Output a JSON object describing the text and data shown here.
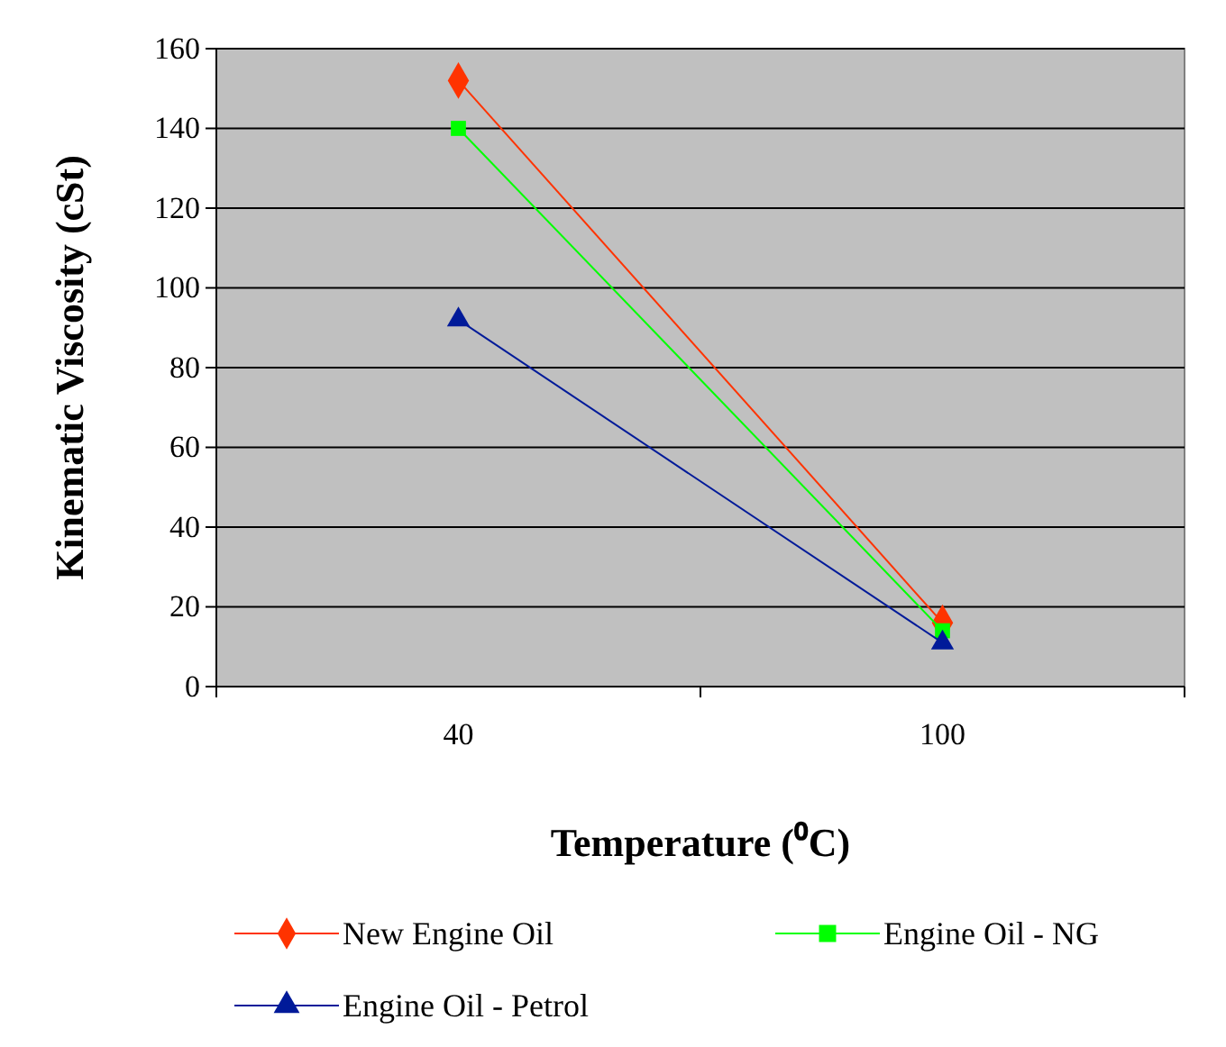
{
  "chart_data": {
    "type": "line",
    "xlabel": "Temperature (⁰C)",
    "ylabel": "Kinematic Viscosity (cSt)",
    "categories": [
      "40",
      "100"
    ],
    "series": [
      {
        "name": "New Engine Oil",
        "color": "#ff3300",
        "values": [
          152,
          16
        ],
        "marker": "diamond"
      },
      {
        "name": "Engine Oil - NG",
        "color": "#00ff00",
        "values": [
          140,
          14
        ],
        "marker": "square"
      },
      {
        "name": "Engine Oil - Petrol",
        "color": "#001a99",
        "values": [
          92,
          11
        ],
        "marker": "triangle"
      }
    ],
    "ylim": [
      0,
      160
    ],
    "yticks": [
      0,
      20,
      40,
      60,
      80,
      100,
      120,
      140,
      160
    ],
    "grid": "y",
    "legend": "bottom",
    "line_style": "solid"
  }
}
